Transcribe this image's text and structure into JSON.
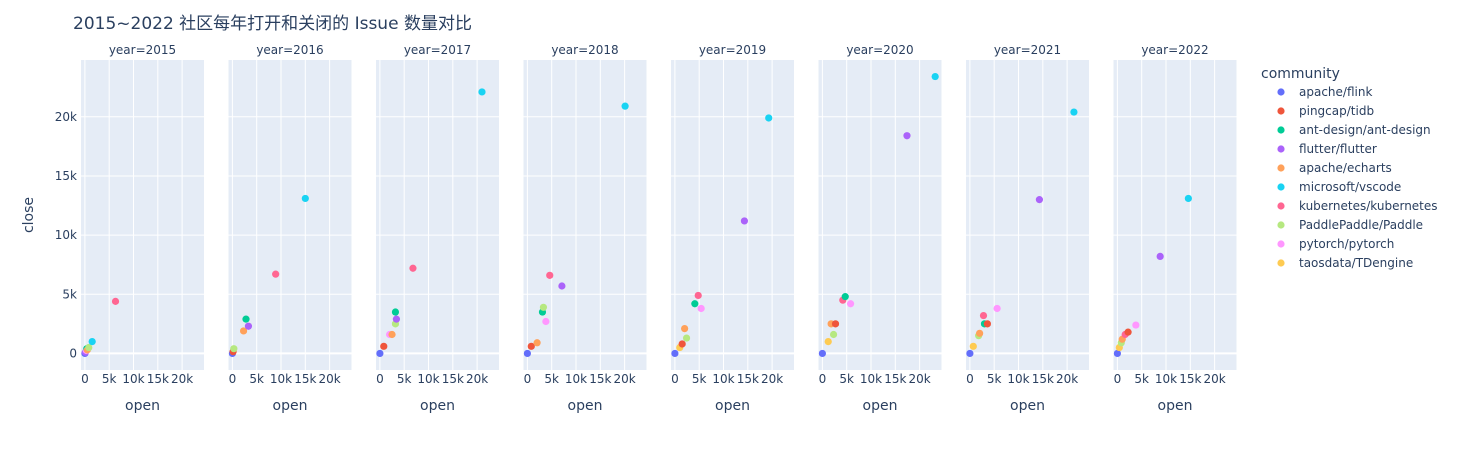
{
  "chart_data": {
    "type": "scatter",
    "title": "2015~2022 社区每年打开和关闭的 Issue 数量对比",
    "xlabel": "open",
    "ylabel": "close",
    "xlim": [
      -800,
      24500
    ],
    "ylim": [
      -1400,
      24800
    ],
    "x_ticks": [
      0,
      5000,
      10000,
      15000,
      20000
    ],
    "x_tick_labels": [
      "0",
      "5k",
      "10k",
      "15k",
      "20k"
    ],
    "y_ticks": [
      0,
      5000,
      10000,
      15000,
      20000
    ],
    "y_tick_labels": [
      "0",
      "5k",
      "10k",
      "15k",
      "20k"
    ],
    "grid": true,
    "legend_title": "community",
    "legend_position": "right",
    "series": [
      {
        "name": "apache/flink",
        "color": "#636efa"
      },
      {
        "name": "pingcap/tidb",
        "color": "#EF553B"
      },
      {
        "name": "ant-design/ant-design",
        "color": "#00cc96"
      },
      {
        "name": "flutter/flutter",
        "color": "#ab63fa"
      },
      {
        "name": "apache/echarts",
        "color": "#FFA15A"
      },
      {
        "name": "microsoft/vscode",
        "color": "#19d3f3"
      },
      {
        "name": "kubernetes/kubernetes",
        "color": "#FF6692"
      },
      {
        "name": "PaddlePaddle/Paddle",
        "color": "#B6E880"
      },
      {
        "name": "pytorch/pytorch",
        "color": "#FF97FF"
      },
      {
        "name": "taosdata/TDengine",
        "color": "#FECB52"
      }
    ],
    "facets": [
      {
        "label": "year=2015",
        "points": [
          {
            "s": 0,
            "x": 0,
            "y": 0
          },
          {
            "s": 3,
            "x": 100,
            "y": 100
          },
          {
            "s": 8,
            "x": 300,
            "y": 250
          },
          {
            "s": 2,
            "x": 400,
            "y": 400
          },
          {
            "s": 4,
            "x": 500,
            "y": 300
          },
          {
            "s": 7,
            "x": 800,
            "y": 500
          },
          {
            "s": 5,
            "x": 1500,
            "y": 1000
          },
          {
            "s": 6,
            "x": 6300,
            "y": 4400
          }
        ]
      },
      {
        "label": "year=2016",
        "points": [
          {
            "s": 0,
            "x": 0,
            "y": 0
          },
          {
            "s": 1,
            "x": 150,
            "y": 150
          },
          {
            "s": 7,
            "x": 300,
            "y": 400
          },
          {
            "s": 4,
            "x": 2300,
            "y": 1900
          },
          {
            "s": 2,
            "x": 2800,
            "y": 2900
          },
          {
            "s": 3,
            "x": 3300,
            "y": 2300
          },
          {
            "s": 6,
            "x": 8900,
            "y": 6700
          },
          {
            "s": 5,
            "x": 15000,
            "y": 13100
          }
        ]
      },
      {
        "label": "year=2017",
        "points": [
          {
            "s": 0,
            "x": 0,
            "y": 0
          },
          {
            "s": 1,
            "x": 800,
            "y": 600
          },
          {
            "s": 8,
            "x": 2000,
            "y": 1600
          },
          {
            "s": 4,
            "x": 2500,
            "y": 1600
          },
          {
            "s": 7,
            "x": 3200,
            "y": 2500
          },
          {
            "s": 3,
            "x": 3400,
            "y": 2900
          },
          {
            "s": 2,
            "x": 3200,
            "y": 3500
          },
          {
            "s": 6,
            "x": 6800,
            "y": 7200
          },
          {
            "s": 5,
            "x": 21000,
            "y": 22100
          }
        ]
      },
      {
        "label": "year=2018",
        "points": [
          {
            "s": 0,
            "x": 0,
            "y": 0
          },
          {
            "s": 1,
            "x": 800,
            "y": 600
          },
          {
            "s": 4,
            "x": 2000,
            "y": 900
          },
          {
            "s": 8,
            "x": 3800,
            "y": 2700
          },
          {
            "s": 2,
            "x": 3100,
            "y": 3500
          },
          {
            "s": 7,
            "x": 3300,
            "y": 3900
          },
          {
            "s": 6,
            "x": 4600,
            "y": 6600
          },
          {
            "s": 3,
            "x": 7100,
            "y": 5700
          },
          {
            "s": 5,
            "x": 20100,
            "y": 20900
          }
        ]
      },
      {
        "label": "year=2019",
        "points": [
          {
            "s": 0,
            "x": 0,
            "y": 0
          },
          {
            "s": 9,
            "x": 1000,
            "y": 500
          },
          {
            "s": 1,
            "x": 1500,
            "y": 800
          },
          {
            "s": 7,
            "x": 2400,
            "y": 1300
          },
          {
            "s": 4,
            "x": 2000,
            "y": 2100
          },
          {
            "s": 2,
            "x": 4100,
            "y": 4200
          },
          {
            "s": 6,
            "x": 4800,
            "y": 4900
          },
          {
            "s": 8,
            "x": 5400,
            "y": 3800
          },
          {
            "s": 3,
            "x": 14300,
            "y": 11200
          },
          {
            "s": 5,
            "x": 19300,
            "y": 19900
          }
        ]
      },
      {
        "label": "year=2020",
        "points": [
          {
            "s": 0,
            "x": 0,
            "y": 0
          },
          {
            "s": 9,
            "x": 1200,
            "y": 1000
          },
          {
            "s": 7,
            "x": 2300,
            "y": 1600
          },
          {
            "s": 4,
            "x": 1800,
            "y": 2500
          },
          {
            "s": 1,
            "x": 2700,
            "y": 2500
          },
          {
            "s": 6,
            "x": 4200,
            "y": 4500
          },
          {
            "s": 2,
            "x": 4700,
            "y": 4800
          },
          {
            "s": 8,
            "x": 5800,
            "y": 4200
          },
          {
            "s": 3,
            "x": 17400,
            "y": 18400
          },
          {
            "s": 5,
            "x": 23200,
            "y": 23400
          }
        ]
      },
      {
        "label": "year=2021",
        "points": [
          {
            "s": 0,
            "x": 0,
            "y": 0
          },
          {
            "s": 9,
            "x": 700,
            "y": 600
          },
          {
            "s": 7,
            "x": 1800,
            "y": 1500
          },
          {
            "s": 4,
            "x": 2000,
            "y": 1700
          },
          {
            "s": 6,
            "x": 2800,
            "y": 3200
          },
          {
            "s": 2,
            "x": 3000,
            "y": 2500
          },
          {
            "s": 1,
            "x": 3600,
            "y": 2500
          },
          {
            "s": 8,
            "x": 5600,
            "y": 3800
          },
          {
            "s": 3,
            "x": 14300,
            "y": 13000
          },
          {
            "s": 5,
            "x": 21400,
            "y": 20400
          }
        ]
      },
      {
        "label": "year=2022",
        "points": [
          {
            "s": 0,
            "x": 0,
            "y": 0
          },
          {
            "s": 9,
            "x": 400,
            "y": 500
          },
          {
            "s": 7,
            "x": 800,
            "y": 900
          },
          {
            "s": 4,
            "x": 1000,
            "y": 1200
          },
          {
            "s": 6,
            "x": 1600,
            "y": 1600
          },
          {
            "s": 1,
            "x": 2200,
            "y": 1800
          },
          {
            "s": 8,
            "x": 3800,
            "y": 2400
          },
          {
            "s": 3,
            "x": 8800,
            "y": 8200
          },
          {
            "s": 5,
            "x": 14600,
            "y": 13100
          }
        ]
      }
    ]
  }
}
